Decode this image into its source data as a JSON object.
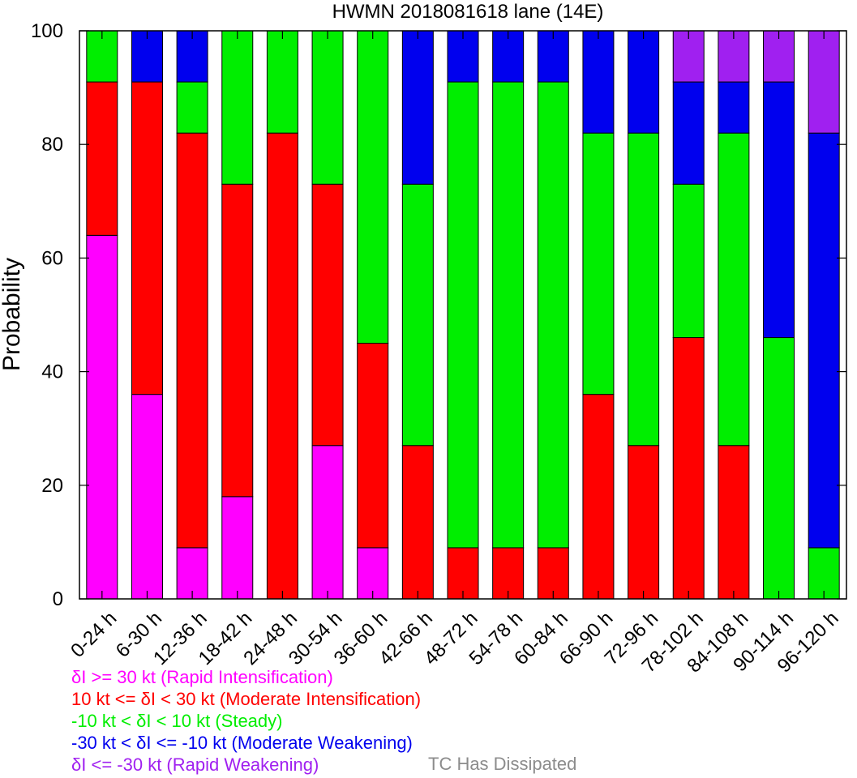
{
  "chart_data": {
    "type": "bar",
    "stacked": true,
    "title": "HWMN 2018081618 lane (14E)",
    "ylabel": "Probability",
    "ylim": [
      0,
      100
    ],
    "yticks": [
      0,
      20,
      40,
      60,
      80,
      100
    ],
    "categories": [
      "0-24 h",
      "6-30 h",
      "12-36 h",
      "18-42 h",
      "24-48 h",
      "30-54 h",
      "36-60 h",
      "42-66 h",
      "48-72 h",
      "54-78 h",
      "60-84 h",
      "66-90 h",
      "72-96 h",
      "78-102 h",
      "84-108 h",
      "90-114 h",
      "96-120 h"
    ],
    "series": [
      {
        "name": "δI >= 30 kt (Rapid Intensification)",
        "color": "#ff00ff",
        "values": [
          64,
          36,
          9,
          18,
          0,
          27,
          9,
          0,
          0,
          0,
          0,
          0,
          0,
          0,
          0,
          0,
          0
        ]
      },
      {
        "name": "10 kt <= δI < 30 kt (Moderate Intensification)",
        "color": "#ff0000",
        "values": [
          27,
          55,
          73,
          55,
          82,
          46,
          36,
          27,
          9,
          9,
          9,
          36,
          27,
          46,
          27,
          0,
          0
        ]
      },
      {
        "name": "-10 kt < δI < 10 kt (Steady)",
        "color": "#00ee00",
        "values": [
          9,
          0,
          9,
          27,
          18,
          27,
          55,
          46,
          82,
          82,
          82,
          46,
          55,
          27,
          55,
          46,
          9
        ]
      },
      {
        "name": "-30 kt < δI <= -10 kt (Moderate Weakening)",
        "color": "#0000ee",
        "values": [
          0,
          9,
          9,
          0,
          0,
          0,
          0,
          27,
          9,
          9,
          9,
          18,
          18,
          18,
          9,
          45,
          73
        ]
      },
      {
        "name": "δI <= -30 kt (Rapid Weakening)",
        "color": "#a020f0",
        "values": [
          0,
          0,
          0,
          0,
          0,
          0,
          0,
          0,
          0,
          0,
          0,
          0,
          0,
          9,
          9,
          9,
          18
        ]
      }
    ],
    "extra_legend": {
      "name": "TC Has Dissipated",
      "color": "#8c8c8c"
    },
    "grid": false,
    "legend_position": "bottom"
  }
}
